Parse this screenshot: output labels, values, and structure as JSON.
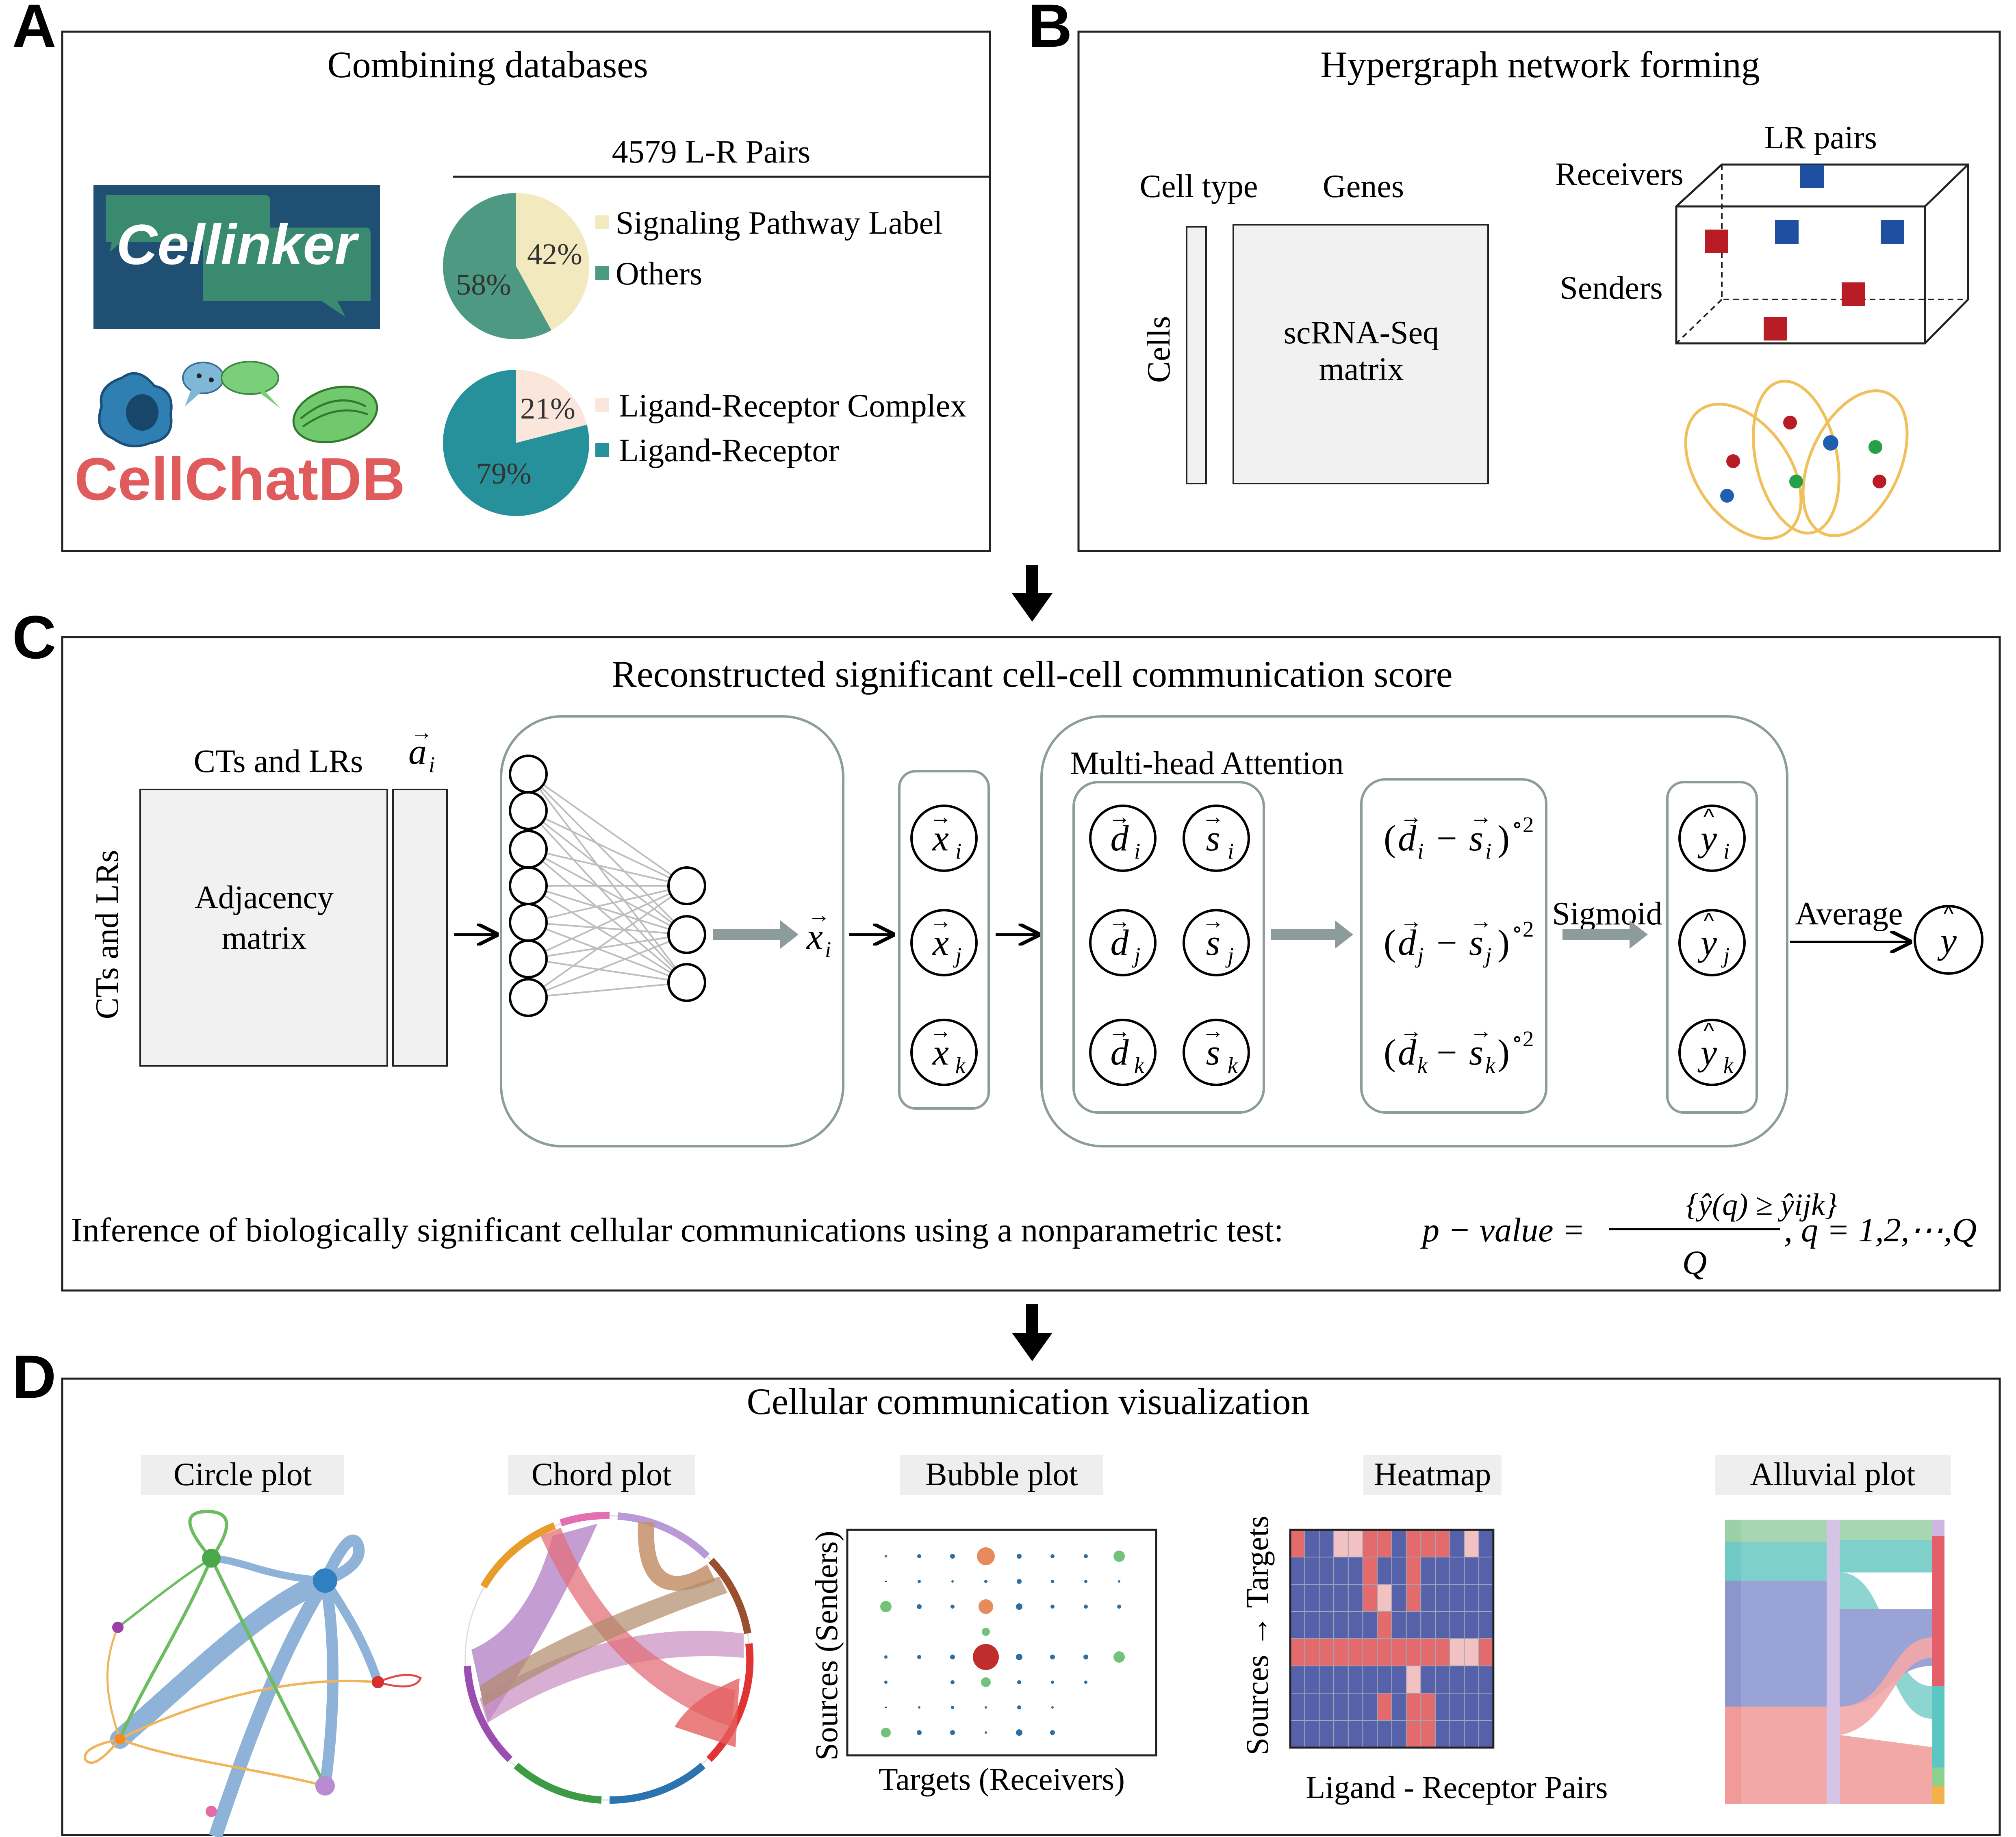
{
  "panels": {
    "a": {
      "letter": "A",
      "title": "Combining databases",
      "pairs_header": "4579 L-R Pairs",
      "logo_cellinker": "Cellinker",
      "logo_cellchat": "CellChatDB",
      "pie1": {
        "slices": [
          {
            "label": "Signaling Pathway Label",
            "pct_text": "42%",
            "value": 42,
            "color": "#f3e9bf"
          },
          {
            "label": "Others",
            "pct_text": "58%",
            "value": 58,
            "color": "#4e9982"
          }
        ]
      },
      "pie2": {
        "slices": [
          {
            "label": "Ligand-Receptor Complex",
            "pct_text": "21%",
            "value": 21,
            "color": "#fbe6dc"
          },
          {
            "label": "Ligand-Receptor",
            "pct_text": "79%",
            "value": 79,
            "color": "#26919a"
          }
        ]
      }
    },
    "b": {
      "letter": "B",
      "title": "Hypergraph network forming",
      "cell_type": "Cell type",
      "genes": "Genes",
      "cells": "Cells",
      "matrix_line1": "scRNA-Seq",
      "matrix_line2": "matrix",
      "lr_pairs": "LR pairs",
      "receivers": "Receivers",
      "senders": "Senders"
    },
    "c": {
      "letter": "C",
      "title": "Reconstructed significant cell-cell communication score",
      "cts_lrs_top": "CTs and LRs",
      "cts_lrs_side": "CTs and LRs",
      "adjacency_line1": "Adjacency",
      "adjacency_line2": "matrix",
      "a_vec": "a",
      "a_sub": "i",
      "mha_title": "Multi-head Attention",
      "sigmoid": "Sigmoid",
      "average": "Average",
      "x_output": "x",
      "x_output_sub": "i",
      "x_nodes": [
        {
          "sym": "x",
          "sub": "i"
        },
        {
          "sym": "x",
          "sub": "j"
        },
        {
          "sym": "x",
          "sub": "k"
        }
      ],
      "d_nodes": [
        {
          "sym": "d",
          "sub": "i"
        },
        {
          "sym": "d",
          "sub": "j"
        },
        {
          "sym": "d",
          "sub": "k"
        }
      ],
      "s_nodes": [
        {
          "sym": "s",
          "sub": "i"
        },
        {
          "sym": "s",
          "sub": "j"
        },
        {
          "sym": "s",
          "sub": "k"
        }
      ],
      "diffs": [
        {
          "d": "d",
          "s": "s",
          "sub": "i",
          "sup": "∘2"
        },
        {
          "d": "d",
          "s": "s",
          "sub": "j",
          "sup": "∘2"
        },
        {
          "d": "d",
          "s": "s",
          "sub": "k",
          "sup": "∘2"
        }
      ],
      "y_nodes": [
        {
          "sym": "y",
          "sub": "i"
        },
        {
          "sym": "y",
          "sub": "j"
        },
        {
          "sym": "y",
          "sub": "k"
        }
      ],
      "y_final": "y",
      "inference_text": "Inference of  biologically significant cellular communications using a nonparametric test:",
      "formula": {
        "lhs": "p − value =",
        "numerator": "{ŷ(q) ≥ ŷijk}",
        "denominator": "Q",
        "tail": ", q = 1,2,⋯,Q"
      }
    },
    "d": {
      "letter": "D",
      "title": "Cellular communication visualization",
      "plots": [
        {
          "key": "circle",
          "label": "Circle plot"
        },
        {
          "key": "chord",
          "label": "Chord plot"
        },
        {
          "key": "bubble",
          "label": "Bubble plot"
        },
        {
          "key": "heatmap",
          "label": "Heatmap"
        },
        {
          "key": "alluvial",
          "label": "Alluvial plot"
        }
      ],
      "bubble_ylabel": "Sources (Senders)",
      "bubble_xlabel": "Targets (Receivers)",
      "heatmap_ylabel": "Sources → Targets",
      "heatmap_xlabel": "Ligand - Receptor Pairs",
      "heatmap_colors": {
        "low": "#5561a8",
        "high": "#e36b6b",
        "mid": "#f2c2c2"
      }
    }
  }
}
